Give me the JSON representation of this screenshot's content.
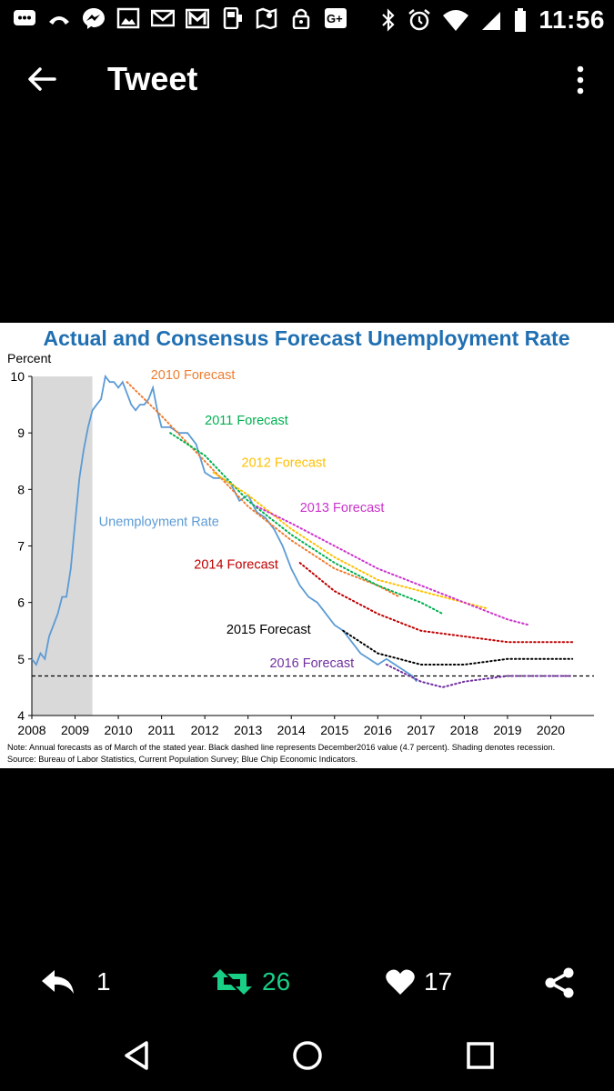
{
  "status_bar": {
    "time": "11:56",
    "icons": [
      "message-icon",
      "phone-icon",
      "messenger-icon",
      "image-icon",
      "mail-icon",
      "gmail-icon",
      "payment-icon",
      "maps-icon",
      "lock-icon",
      "google-plus-icon",
      "bluetooth-icon",
      "alarm-icon",
      "wifi-icon",
      "signal-icon",
      "battery-icon"
    ]
  },
  "app_bar": {
    "title": "Tweet"
  },
  "chart_data": {
    "type": "line",
    "title": "Actual and Consensus Forecast Unemployment Rate",
    "ylabel": "Percent",
    "xlabel": "",
    "ylim": [
      4,
      10
    ],
    "xlim": [
      2008,
      2021
    ],
    "y_ticks": [
      4,
      5,
      6,
      7,
      8,
      9,
      10
    ],
    "x_ticks": [
      2008,
      2009,
      2010,
      2011,
      2012,
      2013,
      2014,
      2015,
      2016,
      2017,
      2018,
      2019,
      2020
    ],
    "recession": [
      2008,
      2009.4
    ],
    "reference_line": {
      "value": 4.7,
      "style": "dashed",
      "color": "#000000"
    },
    "series": [
      {
        "name": "Unemployment Rate",
        "label": "Unemployment Rate",
        "color": "#5B9BD5",
        "style": "solid",
        "x": [
          2008.0,
          2008.1,
          2008.2,
          2008.3,
          2008.4,
          2008.5,
          2008.6,
          2008.7,
          2008.8,
          2008.9,
          2009.0,
          2009.1,
          2009.2,
          2009.3,
          2009.4,
          2009.5,
          2009.6,
          2009.7,
          2009.8,
          2009.9,
          2010.0,
          2010.1,
          2010.2,
          2010.3,
          2010.4,
          2010.5,
          2010.6,
          2010.7,
          2010.8,
          2010.9,
          2011.0,
          2011.2,
          2011.4,
          2011.6,
          2011.8,
          2012.0,
          2012.2,
          2012.4,
          2012.6,
          2012.8,
          2013.0,
          2013.2,
          2013.4,
          2013.6,
          2013.8,
          2014.0,
          2014.2,
          2014.4,
          2014.6,
          2014.8,
          2015.0,
          2015.2,
          2015.4,
          2015.6,
          2015.8,
          2016.0,
          2016.2,
          2016.4,
          2016.6,
          2016.8,
          2016.9
        ],
        "y": [
          5.0,
          4.9,
          5.1,
          5.0,
          5.4,
          5.6,
          5.8,
          6.1,
          6.1,
          6.6,
          7.4,
          8.2,
          8.7,
          9.1,
          9.4,
          9.5,
          9.6,
          10.0,
          9.9,
          9.9,
          9.8,
          9.9,
          9.7,
          9.5,
          9.4,
          9.5,
          9.5,
          9.6,
          9.8,
          9.4,
          9.1,
          9.1,
          9.0,
          9.0,
          8.8,
          8.3,
          8.2,
          8.2,
          8.1,
          7.8,
          7.9,
          7.6,
          7.5,
          7.3,
          7.0,
          6.6,
          6.3,
          6.1,
          6.0,
          5.8,
          5.6,
          5.5,
          5.3,
          5.1,
          5.0,
          4.9,
          5.0,
          4.9,
          4.8,
          4.7,
          4.6
        ]
      },
      {
        "name": "2010 Forecast",
        "label": "2010 Forecast",
        "color": "#ED7D31",
        "style": "dotted",
        "x": [
          2010.2,
          2011,
          2012,
          2013,
          2014,
          2015,
          2016,
          2016.5
        ],
        "y": [
          9.9,
          9.3,
          8.5,
          7.7,
          7.1,
          6.6,
          6.3,
          6.1
        ]
      },
      {
        "name": "2011 Forecast",
        "label": "2011 Forecast",
        "color": "#00B050",
        "style": "dotted",
        "x": [
          2011.2,
          2012,
          2013,
          2014,
          2015,
          2016,
          2017,
          2017.5
        ],
        "y": [
          9.0,
          8.6,
          7.8,
          7.2,
          6.7,
          6.3,
          6.0,
          5.8
        ]
      },
      {
        "name": "2012 Forecast",
        "label": "2012 Forecast",
        "color": "#FFC000",
        "style": "dotted",
        "x": [
          2012.2,
          2013,
          2014,
          2015,
          2016,
          2017,
          2018,
          2018.5
        ],
        "y": [
          8.3,
          7.9,
          7.3,
          6.8,
          6.4,
          6.2,
          6.0,
          5.9
        ]
      },
      {
        "name": "2013 Forecast",
        "label": "2013 Forecast",
        "color": "#CC33CC",
        "style": "dotted",
        "x": [
          2013.2,
          2014,
          2015,
          2016,
          2017,
          2018,
          2019,
          2019.5
        ],
        "y": [
          7.7,
          7.4,
          7.0,
          6.6,
          6.3,
          6.0,
          5.7,
          5.6
        ]
      },
      {
        "name": "2014 Forecast",
        "label": "2014 Forecast",
        "color": "#C00000",
        "style": "dotted",
        "x": [
          2014.2,
          2015,
          2016,
          2017,
          2018,
          2019,
          2020,
          2020.5
        ],
        "y": [
          6.7,
          6.2,
          5.8,
          5.5,
          5.4,
          5.3,
          5.3,
          5.3
        ]
      },
      {
        "name": "2015 Forecast",
        "label": "2015 Forecast",
        "color": "#000000",
        "style": "dotted",
        "x": [
          2015.2,
          2016,
          2017,
          2018,
          2019,
          2020,
          2020.5
        ],
        "y": [
          5.5,
          5.1,
          4.9,
          4.9,
          5.0,
          5.0,
          5.0
        ]
      },
      {
        "name": "2016 Forecast",
        "label": "2016 Forecast",
        "color": "#7030A0",
        "style": "dotted",
        "x": [
          2016.2,
          2017,
          2017.5,
          2018,
          2019,
          2020,
          2020.5
        ],
        "y": [
          4.9,
          4.6,
          4.5,
          4.6,
          4.7,
          4.7,
          4.7
        ]
      }
    ],
    "note": "Note: Annual forecasts as of March of the stated year. Black dashed line represents December2016 value (4.7 percent). Shading denotes recession.",
    "source": "Source: Bureau of Labor Statistics, Current Population Survey; Blue Chip Economic Indicators."
  },
  "actions": {
    "reply_count": "1",
    "retweet_count": "26",
    "like_count": "17"
  },
  "colors": {
    "retweet": "#19CF86",
    "title": "#1F6FB2"
  }
}
